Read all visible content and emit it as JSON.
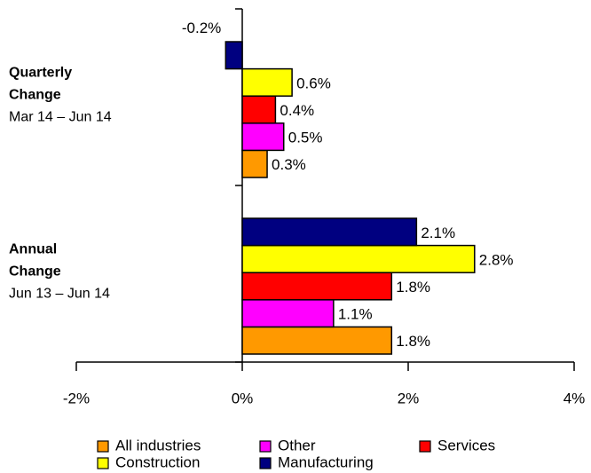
{
  "chart_data": {
    "type": "bar",
    "orientation": "horizontal",
    "categories": [
      "Quarterly Change",
      "Annual Change"
    ],
    "category_periods": [
      "Mar 14 – Jun 14",
      "Jun 13 – Jun 14"
    ],
    "series": [
      {
        "name": "All industries",
        "color": "#FF9900",
        "values": [
          0.3,
          1.8
        ],
        "value_labels": [
          "0.3%",
          "1.8%"
        ]
      },
      {
        "name": "Other",
        "color": "#FF00FF",
        "values": [
          0.5,
          1.1
        ],
        "value_labels": [
          "0.5%",
          "1.1%"
        ]
      },
      {
        "name": "Services",
        "color": "#FF0000",
        "values": [
          0.4,
          1.8
        ],
        "value_labels": [
          "0.4%",
          "1.8%"
        ]
      },
      {
        "name": "Construction",
        "color": "#FFFF00",
        "values": [
          0.6,
          2.8
        ],
        "value_labels": [
          "0.6%",
          "2.8%"
        ]
      },
      {
        "name": "Manufacturing",
        "color": "#000080",
        "values": [
          -0.2,
          2.1
        ],
        "value_labels": [
          "-0.2%",
          "2.1%"
        ]
      }
    ],
    "xlim": [
      -2,
      4
    ],
    "xticks": [
      {
        "value": -2,
        "label": "-2%"
      },
      {
        "value": 0,
        "label": "0%"
      },
      {
        "value": 2,
        "label": "2%"
      },
      {
        "value": 4,
        "label": "4%"
      }
    ]
  }
}
